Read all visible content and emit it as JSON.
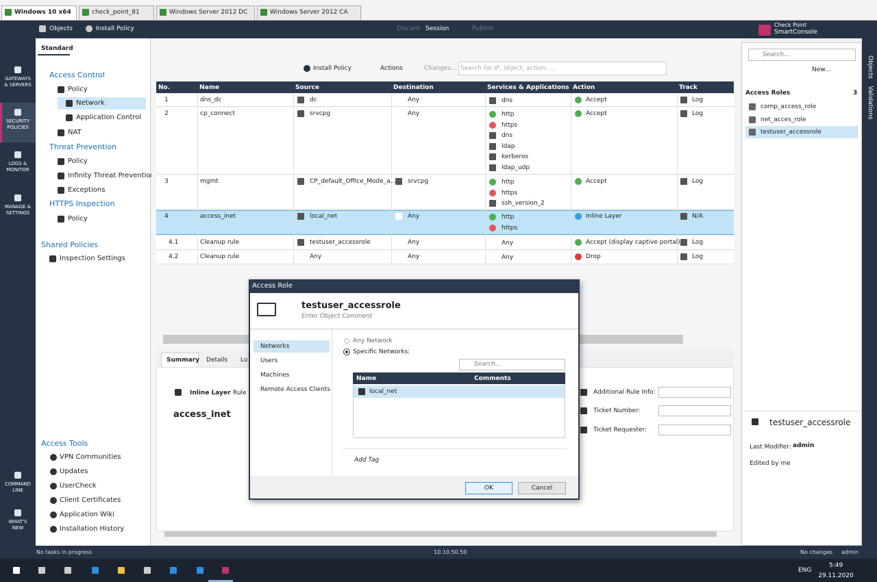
{
  "vm_tabs": [
    "Windows 10 x64",
    "check_point_81",
    "Windows Server 2012 DC",
    "Windows Server 2012 CA"
  ],
  "top_bar": {
    "objects": "Objects",
    "install_policy": "Install Policy",
    "discard": "Discard",
    "session": "Session",
    "publish": "Publish",
    "brand_top": "Check Point",
    "brand_bottom": "SmartConsole"
  },
  "left_nav": [
    [
      "GATEWAYS",
      "& SERVERS"
    ],
    [
      "SECURITY",
      "POLICIES"
    ],
    [
      "LOGS &",
      "MONITOR"
    ],
    [
      "MANAGE &",
      "SETTINGS"
    ],
    [
      "COMMAND",
      "LINE"
    ],
    [
      "WHAT'S",
      "NEW"
    ]
  ],
  "policy_tab": "Standard",
  "policy_tree": [
    "Access Control",
    "Policy",
    "Network",
    "Application Control",
    "NAT",
    "Threat Prevention",
    "Policy",
    "Infinity Threat Prevention",
    "Exceptions",
    "HTTPS Inspection",
    "Policy",
    "Shared Policies",
    "Inspection Settings"
  ],
  "access_tools": {
    "title": "Access Tools",
    "items": [
      "VPN Communities",
      "Updates",
      "UserCheck",
      "Client Certificates",
      "Application Wiki",
      "Installation History"
    ]
  },
  "rulebase": {
    "toolbar": {
      "install_policy": "Install Policy",
      "actions": "Actions",
      "changes": "Changes...",
      "search": "Search for IP, object, action, ..."
    },
    "columns": [
      "No.",
      "Name",
      "Source",
      "Destination",
      "Services & Applications",
      "Action",
      "Track"
    ],
    "rows": [
      {
        "no": "1",
        "name": "dns_dc",
        "source": [
          "dc"
        ],
        "destination": [
          "Any"
        ],
        "services": [
          "dns"
        ],
        "action": "Accept",
        "track": "Log"
      },
      {
        "no": "2",
        "name": "cp_connect",
        "source": [
          "srvcpg"
        ],
        "destination": [
          "Any"
        ],
        "services": [
          "http",
          "https",
          "dns",
          "ldap",
          "kerberos",
          "ldap_udp"
        ],
        "action": "Accept",
        "track": "Log"
      },
      {
        "no": "3",
        "name": "mgmt",
        "source": [
          "CP_default_Office_Mode_a..."
        ],
        "destination": [
          "srvcpg"
        ],
        "services": [
          "http",
          "https",
          "ssh_version_2"
        ],
        "action": "Accept",
        "track": "Log"
      },
      {
        "no": "4",
        "name": "access_inet",
        "source": [
          "local_net"
        ],
        "destination": [
          "Any"
        ],
        "services": [
          "http",
          "https"
        ],
        "action": "Inline Layer",
        "track": "N/A"
      },
      {
        "no": "4.1",
        "name": "Cleanup rule",
        "source": [
          "testuser_accessrole"
        ],
        "destination": [
          "Any"
        ],
        "services": [
          "Any"
        ],
        "action": "Accept (display captive portal)",
        "track": "Log"
      },
      {
        "no": "4.2",
        "name": "Cleanup rule",
        "source": [
          "Any"
        ],
        "destination": [
          "Any"
        ],
        "services": [
          "Any"
        ],
        "action": "Drop",
        "track": "Log"
      }
    ]
  },
  "details": {
    "tabs": [
      "Summary",
      "Details",
      "Lo"
    ],
    "layer": "Inline Layer",
    "rule": "Rule",
    "name": "access_inet",
    "fields": [
      "Additional Rule Info:",
      "Ticket Number:",
      "Ticket Requester:"
    ]
  },
  "dialog": {
    "title": "Access Role",
    "name": "testuser_accessrole",
    "comment": "Enter Object Comment",
    "menu": [
      "Networks",
      "Users",
      "Machines",
      "Remote Access Clients"
    ],
    "options": [
      "Any Network",
      "Specific Networks:"
    ],
    "search": "Search...",
    "columns": [
      "Name",
      "Comments"
    ],
    "rows": [
      "local_net"
    ],
    "add_tag": "Add Tag",
    "buttons": [
      "OK",
      "Cancel"
    ]
  },
  "objects_panel": {
    "search": "Search...",
    "new": "New...",
    "section": "Access Roles",
    "count": "3",
    "items": [
      "comp_access_role",
      "net_acces_role",
      "testuser_accessrole"
    ],
    "selected_name": "testuser_accessrole",
    "modifier_label": "Last Modifier:",
    "modifier": "admin",
    "edited": "Edited by me",
    "side_tabs": [
      "Objects",
      "Validations"
    ]
  },
  "status_bar": {
    "tasks": "No tasks in progress",
    "server": "10.10.50.50",
    "changes": "No changes",
    "user": "admin"
  },
  "taskbar": {
    "lang": "ENG",
    "time": "5:49",
    "date": "29.11.2020"
  }
}
